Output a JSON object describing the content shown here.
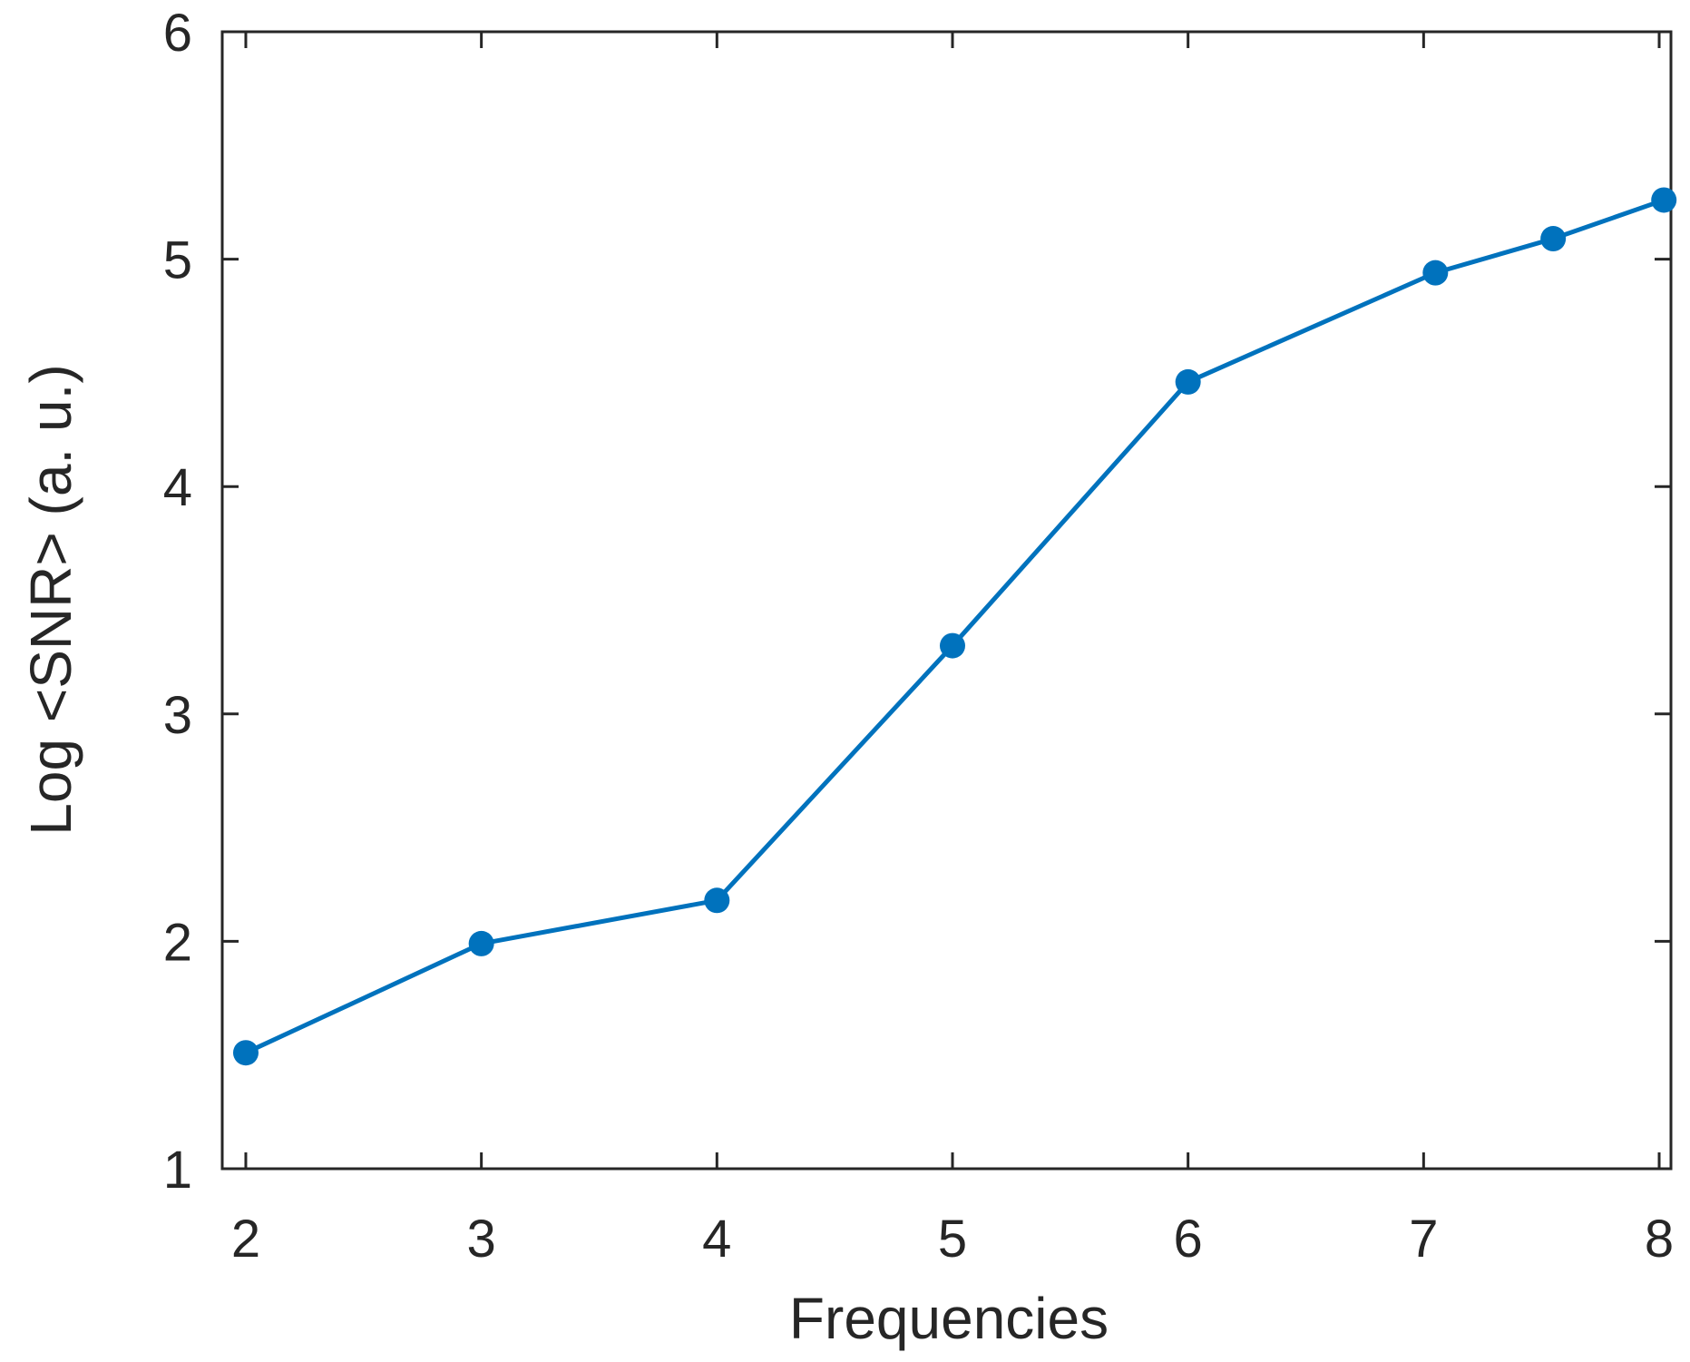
{
  "chart_data": {
    "type": "line",
    "title": "",
    "xlabel": "Frequencies",
    "ylabel": "Log <SNR> (a. u.)",
    "xlim": [
      1.9,
      8.05
    ],
    "ylim": [
      1,
      6
    ],
    "xticks": [
      2,
      3,
      4,
      5,
      6,
      7,
      8
    ],
    "yticks": [
      1,
      2,
      3,
      4,
      5,
      6
    ],
    "grid": false,
    "series": [
      {
        "color": "#0072BD",
        "marker": "filled-circle",
        "x": [
          2,
          3,
          4,
          5,
          6,
          7.05,
          7.55,
          8.02
        ],
        "y": [
          1.51,
          1.99,
          2.18,
          3.3,
          4.46,
          4.94,
          5.09,
          5.26
        ]
      }
    ]
  }
}
